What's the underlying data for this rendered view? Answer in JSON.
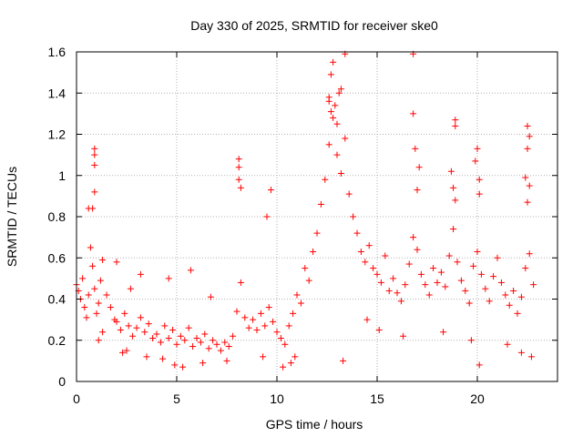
{
  "chart_data": {
    "type": "scatter",
    "title": "Day 330 of 2025, SRMTID for receiver ske0",
    "xlabel": "GPS time / hours",
    "ylabel": "SRMTID / TECUs",
    "xlim": [
      0,
      24
    ],
    "ylim": [
      0,
      1.6
    ],
    "xticks": [
      0,
      5,
      10,
      15,
      20
    ],
    "xtick_labels": [
      "0",
      "5",
      "10",
      "15",
      "20"
    ],
    "yticks": [
      0,
      0.2,
      0.4,
      0.6,
      0.8,
      1.0,
      1.2,
      1.4,
      1.6
    ],
    "ytick_labels": [
      "0",
      "0.2",
      "0.4",
      "0.6",
      "0.8",
      "1",
      "1.2",
      "1.4",
      "1.6"
    ],
    "grid": true,
    "marker": "plus",
    "color": "#ff0000",
    "series": [
      {
        "name": "SRMTID",
        "points": [
          [
            0.0,
            0.47
          ],
          [
            0.1,
            0.44
          ],
          [
            0.2,
            0.4
          ],
          [
            0.3,
            0.5
          ],
          [
            0.4,
            0.36
          ],
          [
            0.5,
            0.31
          ],
          [
            0.6,
            0.42
          ],
          [
            0.7,
            0.65
          ],
          [
            0.8,
            0.56
          ],
          [
            0.9,
            0.45
          ],
          [
            1.0,
            0.33
          ],
          [
            1.1,
            0.38
          ],
          [
            1.2,
            0.49
          ],
          [
            1.3,
            0.59
          ],
          [
            1.5,
            0.42
          ],
          [
            1.7,
            0.36
          ],
          [
            1.9,
            0.3
          ],
          [
            2.0,
            0.29
          ],
          [
            2.2,
            0.25
          ],
          [
            2.4,
            0.33
          ],
          [
            2.6,
            0.27
          ],
          [
            2.8,
            0.22
          ],
          [
            3.0,
            0.26
          ],
          [
            3.2,
            0.31
          ],
          [
            3.4,
            0.24
          ],
          [
            3.6,
            0.28
          ],
          [
            3.8,
            0.21
          ],
          [
            4.0,
            0.23
          ],
          [
            4.2,
            0.19
          ],
          [
            4.4,
            0.27
          ],
          [
            4.6,
            0.21
          ],
          [
            4.8,
            0.25
          ],
          [
            5.0,
            0.18
          ],
          [
            5.2,
            0.22
          ],
          [
            5.4,
            0.2
          ],
          [
            5.6,
            0.26
          ],
          [
            5.8,
            0.17
          ],
          [
            6.0,
            0.21
          ],
          [
            6.2,
            0.19
          ],
          [
            6.4,
            0.23
          ],
          [
            6.6,
            0.16
          ],
          [
            6.8,
            0.2
          ],
          [
            7.0,
            0.18
          ],
          [
            7.2,
            0.15
          ],
          [
            7.4,
            0.19
          ],
          [
            7.6,
            0.17
          ],
          [
            7.8,
            0.22
          ],
          [
            8.0,
            0.34
          ],
          [
            8.2,
            0.48
          ],
          [
            8.4,
            0.31
          ],
          [
            8.6,
            0.26
          ],
          [
            8.8,
            0.3
          ],
          [
            9.0,
            0.25
          ],
          [
            9.2,
            0.33
          ],
          [
            9.4,
            0.27
          ],
          [
            9.6,
            0.36
          ],
          [
            9.8,
            0.29
          ],
          [
            10.0,
            0.24
          ],
          [
            10.2,
            0.21
          ],
          [
            10.4,
            0.18
          ],
          [
            10.6,
            0.27
          ],
          [
            10.8,
            0.33
          ],
          [
            11.0,
            0.42
          ],
          [
            11.2,
            0.38
          ],
          [
            11.4,
            0.55
          ],
          [
            11.6,
            0.49
          ],
          [
            11.8,
            0.63
          ],
          [
            12.0,
            0.72
          ],
          [
            12.2,
            0.86
          ],
          [
            12.4,
            0.98
          ],
          [
            12.6,
            1.15
          ],
          [
            12.8,
            1.28
          ],
          [
            13.0,
            1.1
          ],
          [
            13.2,
            1.01
          ],
          [
            13.4,
            1.18
          ],
          [
            13.6,
            0.91
          ],
          [
            13.8,
            0.8
          ],
          [
            14.0,
            0.72
          ],
          [
            14.2,
            0.63
          ],
          [
            14.4,
            0.58
          ],
          [
            14.6,
            0.66
          ],
          [
            14.8,
            0.55
          ],
          [
            15.0,
            0.52
          ],
          [
            15.2,
            0.48
          ],
          [
            15.4,
            0.61
          ],
          [
            15.6,
            0.44
          ],
          [
            15.8,
            0.5
          ],
          [
            16.0,
            0.43
          ],
          [
            16.2,
            0.39
          ],
          [
            16.4,
            0.47
          ],
          [
            16.6,
            0.57
          ],
          [
            16.8,
            0.7
          ],
          [
            17.0,
            0.64
          ],
          [
            17.2,
            0.52
          ],
          [
            17.4,
            0.47
          ],
          [
            17.6,
            0.42
          ],
          [
            17.8,
            0.55
          ],
          [
            18.0,
            0.48
          ],
          [
            18.2,
            0.53
          ],
          [
            18.4,
            0.46
          ],
          [
            18.6,
            0.61
          ],
          [
            18.8,
            0.74
          ],
          [
            19.0,
            0.58
          ],
          [
            19.2,
            0.49
          ],
          [
            19.4,
            0.44
          ],
          [
            19.6,
            0.38
          ],
          [
            19.8,
            0.56
          ],
          [
            20.0,
            0.63
          ],
          [
            20.2,
            0.52
          ],
          [
            20.4,
            0.45
          ],
          [
            20.6,
            0.39
          ],
          [
            20.8,
            0.51
          ],
          [
            21.0,
            0.6
          ],
          [
            21.2,
            0.48
          ],
          [
            21.4,
            0.42
          ],
          [
            21.6,
            0.37
          ],
          [
            21.8,
            0.44
          ],
          [
            22.0,
            0.33
          ],
          [
            22.2,
            0.41
          ],
          [
            22.4,
            0.55
          ],
          [
            22.6,
            0.62
          ],
          [
            22.8,
            0.47
          ],
          [
            0.9,
            1.13
          ],
          [
            0.9,
            1.1
          ],
          [
            0.9,
            1.05
          ],
          [
            0.9,
            0.92
          ],
          [
            0.6,
            0.84
          ],
          [
            0.8,
            0.84
          ],
          [
            8.1,
            1.08
          ],
          [
            8.1,
            1.04
          ],
          [
            8.1,
            0.98
          ],
          [
            8.2,
            0.94
          ],
          [
            9.7,
            0.93
          ],
          [
            9.5,
            0.8
          ],
          [
            12.8,
            1.55
          ],
          [
            12.7,
            1.49
          ],
          [
            12.6,
            1.38
          ],
          [
            12.9,
            1.34
          ],
          [
            13.2,
            1.42
          ],
          [
            13.1,
            1.4
          ],
          [
            12.6,
            1.36
          ],
          [
            12.7,
            1.31
          ],
          [
            13.0,
            1.25
          ],
          [
            13.4,
            1.59
          ],
          [
            16.8,
            1.59
          ],
          [
            16.8,
            1.3
          ],
          [
            16.9,
            1.13
          ],
          [
            17.1,
            1.04
          ],
          [
            17.0,
            0.93
          ],
          [
            18.9,
            1.27
          ],
          [
            18.9,
            1.24
          ],
          [
            18.7,
            1.02
          ],
          [
            18.8,
            0.94
          ],
          [
            18.9,
            0.88
          ],
          [
            20.0,
            1.13
          ],
          [
            19.9,
            1.07
          ],
          [
            20.1,
            0.98
          ],
          [
            20.1,
            0.91
          ],
          [
            22.5,
            1.24
          ],
          [
            22.6,
            1.19
          ],
          [
            22.5,
            1.13
          ],
          [
            22.4,
            0.99
          ],
          [
            22.6,
            0.95
          ],
          [
            22.5,
            0.87
          ],
          [
            13.3,
            0.1
          ],
          [
            20.1,
            0.08
          ],
          [
            14.5,
            0.3
          ],
          [
            15.1,
            0.25
          ],
          [
            16.3,
            0.22
          ],
          [
            18.3,
            0.24
          ],
          [
            19.7,
            0.2
          ],
          [
            21.5,
            0.18
          ],
          [
            22.2,
            0.14
          ],
          [
            22.7,
            0.12
          ],
          [
            1.1,
            0.2
          ],
          [
            1.3,
            0.24
          ],
          [
            2.3,
            0.14
          ],
          [
            2.5,
            0.15
          ],
          [
            3.5,
            0.12
          ],
          [
            4.3,
            0.11
          ],
          [
            4.9,
            0.08
          ],
          [
            5.3,
            0.07
          ],
          [
            6.3,
            0.09
          ],
          [
            7.5,
            0.1
          ],
          [
            9.3,
            0.12
          ],
          [
            10.3,
            0.07
          ],
          [
            10.7,
            0.09
          ],
          [
            10.9,
            0.12
          ],
          [
            5.7,
            0.54
          ],
          [
            4.6,
            0.5
          ],
          [
            3.2,
            0.52
          ],
          [
            2.7,
            0.45
          ],
          [
            2.0,
            0.58
          ],
          [
            6.7,
            0.41
          ]
        ]
      }
    ]
  }
}
